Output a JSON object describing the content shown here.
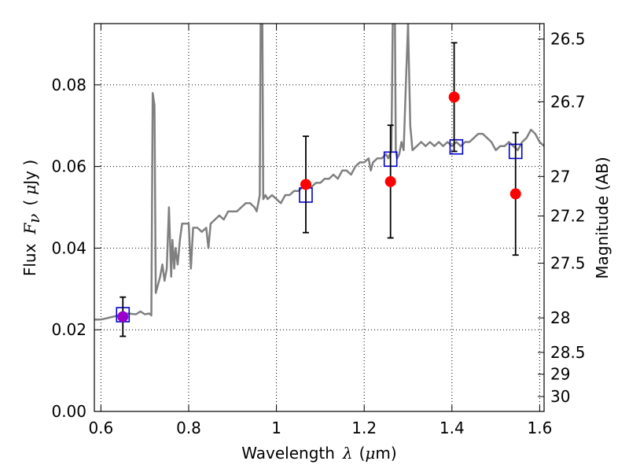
{
  "chart_data": {
    "type": "scatter",
    "xlabel": {
      "text": "Wavelength",
      "symbol": "λ",
      "unit_open": "(",
      "unit_mu": "μ",
      "unit_rest": "m)"
    },
    "ylabel": {
      "text": "Flux",
      "symbol": "F",
      "subscript": "ν",
      "unit_open": "(",
      "unit_mu": "μ",
      "unit_rest": "Jy )"
    },
    "y2label": "Magnitude (AB)",
    "xlim": [
      0.585,
      1.61
    ],
    "ylim": [
      0.0,
      0.095
    ],
    "grid": true,
    "x_ticks": [
      {
        "v": 0.6,
        "label": "0.6"
      },
      {
        "v": 0.8,
        "label": "0.8"
      },
      {
        "v": 1.0,
        "label": "1"
      },
      {
        "v": 1.2,
        "label": "1.2"
      },
      {
        "v": 1.4,
        "label": "1.4"
      },
      {
        "v": 1.6,
        "label": "1.6"
      }
    ],
    "y_ticks": [
      {
        "v": 0.0,
        "label": "0.00"
      },
      {
        "v": 0.02,
        "label": "0.02"
      },
      {
        "v": 0.04,
        "label": "0.04"
      },
      {
        "v": 0.06,
        "label": "0.06"
      },
      {
        "v": 0.08,
        "label": "0.08"
      }
    ],
    "mag_ticks": [
      {
        "v": 26.5,
        "label": "26.5"
      },
      {
        "v": 26.7,
        "label": "26.7"
      },
      {
        "v": 27.0,
        "label": "27"
      },
      {
        "v": 27.2,
        "label": "27.2"
      },
      {
        "v": 27.5,
        "label": "27.5"
      },
      {
        "v": 28.0,
        "label": "28"
      },
      {
        "v": 28.5,
        "label": "28.5"
      },
      {
        "v": 29.0,
        "label": "29"
      },
      {
        "v": 30.0,
        "label": "30"
      }
    ],
    "series": [
      {
        "kind": "line",
        "color": "#808080",
        "points": [
          [
            0.585,
            0.0225
          ],
          [
            0.6,
            0.0225
          ],
          [
            0.62,
            0.023
          ],
          [
            0.64,
            0.0235
          ],
          [
            0.66,
            0.024
          ],
          [
            0.68,
            0.0238
          ],
          [
            0.69,
            0.0245
          ],
          [
            0.7,
            0.0238
          ],
          [
            0.71,
            0.024
          ],
          [
            0.715,
            0.0235
          ],
          [
            0.718,
            0.078
          ],
          [
            0.722,
            0.075
          ],
          [
            0.725,
            0.029
          ],
          [
            0.73,
            0.031
          ],
          [
            0.735,
            0.033
          ],
          [
            0.74,
            0.036
          ],
          [
            0.745,
            0.032
          ],
          [
            0.75,
            0.035
          ],
          [
            0.755,
            0.05
          ],
          [
            0.76,
            0.033
          ],
          [
            0.763,
            0.042
          ],
          [
            0.767,
            0.035
          ],
          [
            0.77,
            0.04
          ],
          [
            0.775,
            0.036
          ],
          [
            0.78,
            0.042
          ],
          [
            0.785,
            0.046
          ],
          [
            0.79,
            0.046
          ],
          [
            0.8,
            0.046
          ],
          [
            0.805,
            0.035
          ],
          [
            0.81,
            0.045
          ],
          [
            0.82,
            0.045
          ],
          [
            0.83,
            0.044
          ],
          [
            0.84,
            0.045
          ],
          [
            0.845,
            0.04
          ],
          [
            0.85,
            0.046
          ],
          [
            0.86,
            0.047
          ],
          [
            0.87,
            0.048
          ],
          [
            0.88,
            0.047
          ],
          [
            0.89,
            0.049
          ],
          [
            0.9,
            0.049
          ],
          [
            0.91,
            0.049
          ],
          [
            0.92,
            0.05
          ],
          [
            0.93,
            0.051
          ],
          [
            0.94,
            0.051
          ],
          [
            0.95,
            0.05
          ],
          [
            0.955,
            0.049
          ],
          [
            0.962,
            0.053
          ],
          [
            0.964,
            0.095
          ],
          [
            0.968,
            0.095
          ],
          [
            0.97,
            0.052
          ],
          [
            0.975,
            0.053
          ],
          [
            0.98,
            0.052
          ],
          [
            0.99,
            0.053
          ],
          [
            1.0,
            0.052
          ],
          [
            1.01,
            0.051
          ],
          [
            1.02,
            0.053
          ],
          [
            1.03,
            0.053
          ],
          [
            1.04,
            0.054
          ],
          [
            1.05,
            0.054
          ],
          [
            1.06,
            0.055
          ],
          [
            1.07,
            0.055
          ],
          [
            1.08,
            0.055
          ],
          [
            1.09,
            0.056
          ],
          [
            1.1,
            0.056
          ],
          [
            1.11,
            0.057
          ],
          [
            1.12,
            0.057
          ],
          [
            1.13,
            0.058
          ],
          [
            1.14,
            0.057
          ],
          [
            1.15,
            0.059
          ],
          [
            1.16,
            0.059
          ],
          [
            1.17,
            0.058
          ],
          [
            1.18,
            0.06
          ],
          [
            1.19,
            0.061
          ],
          [
            1.2,
            0.061
          ],
          [
            1.21,
            0.062
          ],
          [
            1.215,
            0.059
          ],
          [
            1.22,
            0.061
          ],
          [
            1.23,
            0.062
          ],
          [
            1.24,
            0.062
          ],
          [
            1.25,
            0.063
          ],
          [
            1.255,
            0.062
          ],
          [
            1.262,
            0.064
          ],
          [
            1.265,
            0.095
          ],
          [
            1.27,
            0.095
          ],
          [
            1.272,
            0.064
          ],
          [
            1.275,
            0.062
          ],
          [
            1.28,
            0.063
          ],
          [
            1.285,
            0.066
          ],
          [
            1.29,
            0.064
          ],
          [
            1.295,
            0.08
          ],
          [
            1.3,
            0.095
          ],
          [
            1.305,
            0.07
          ],
          [
            1.31,
            0.064
          ],
          [
            1.32,
            0.065
          ],
          [
            1.33,
            0.066
          ],
          [
            1.34,
            0.065
          ],
          [
            1.35,
            0.066
          ],
          [
            1.36,
            0.065
          ],
          [
            1.37,
            0.066
          ],
          [
            1.38,
            0.065
          ],
          [
            1.39,
            0.066
          ],
          [
            1.4,
            0.065
          ],
          [
            1.41,
            0.066
          ],
          [
            1.42,
            0.065
          ],
          [
            1.43,
            0.066
          ],
          [
            1.44,
            0.066
          ],
          [
            1.45,
            0.067
          ],
          [
            1.46,
            0.068
          ],
          [
            1.47,
            0.068
          ],
          [
            1.48,
            0.067
          ],
          [
            1.49,
            0.066
          ],
          [
            1.5,
            0.064
          ],
          [
            1.51,
            0.065
          ],
          [
            1.52,
            0.065
          ],
          [
            1.53,
            0.066
          ],
          [
            1.54,
            0.065
          ],
          [
            1.55,
            0.064
          ],
          [
            1.56,
            0.066
          ],
          [
            1.57,
            0.067
          ],
          [
            1.58,
            0.069
          ],
          [
            1.59,
            0.068
          ],
          [
            1.6,
            0.066
          ],
          [
            1.61,
            0.065
          ]
        ]
      },
      {
        "kind": "squares",
        "color": "#0000cc",
        "points": [
          [
            0.65,
            0.0237
          ],
          [
            1.067,
            0.053
          ],
          [
            1.26,
            0.0618
          ],
          [
            1.41,
            0.0648
          ],
          [
            1.545,
            0.0637
          ]
        ]
      },
      {
        "kind": "errorbar",
        "color": "#ff0000",
        "points": [
          {
            "x": 0.65,
            "y": 0.0232,
            "err": 0.0048,
            "color": "#9900cc"
          },
          {
            "x": 1.067,
            "y": 0.0556,
            "err": 0.0118
          },
          {
            "x": 1.26,
            "y": 0.0563,
            "err": 0.0138
          },
          {
            "x": 1.405,
            "y": 0.077,
            "err": 0.0133
          },
          {
            "x": 1.545,
            "y": 0.0533,
            "err": 0.015
          }
        ]
      }
    ]
  }
}
